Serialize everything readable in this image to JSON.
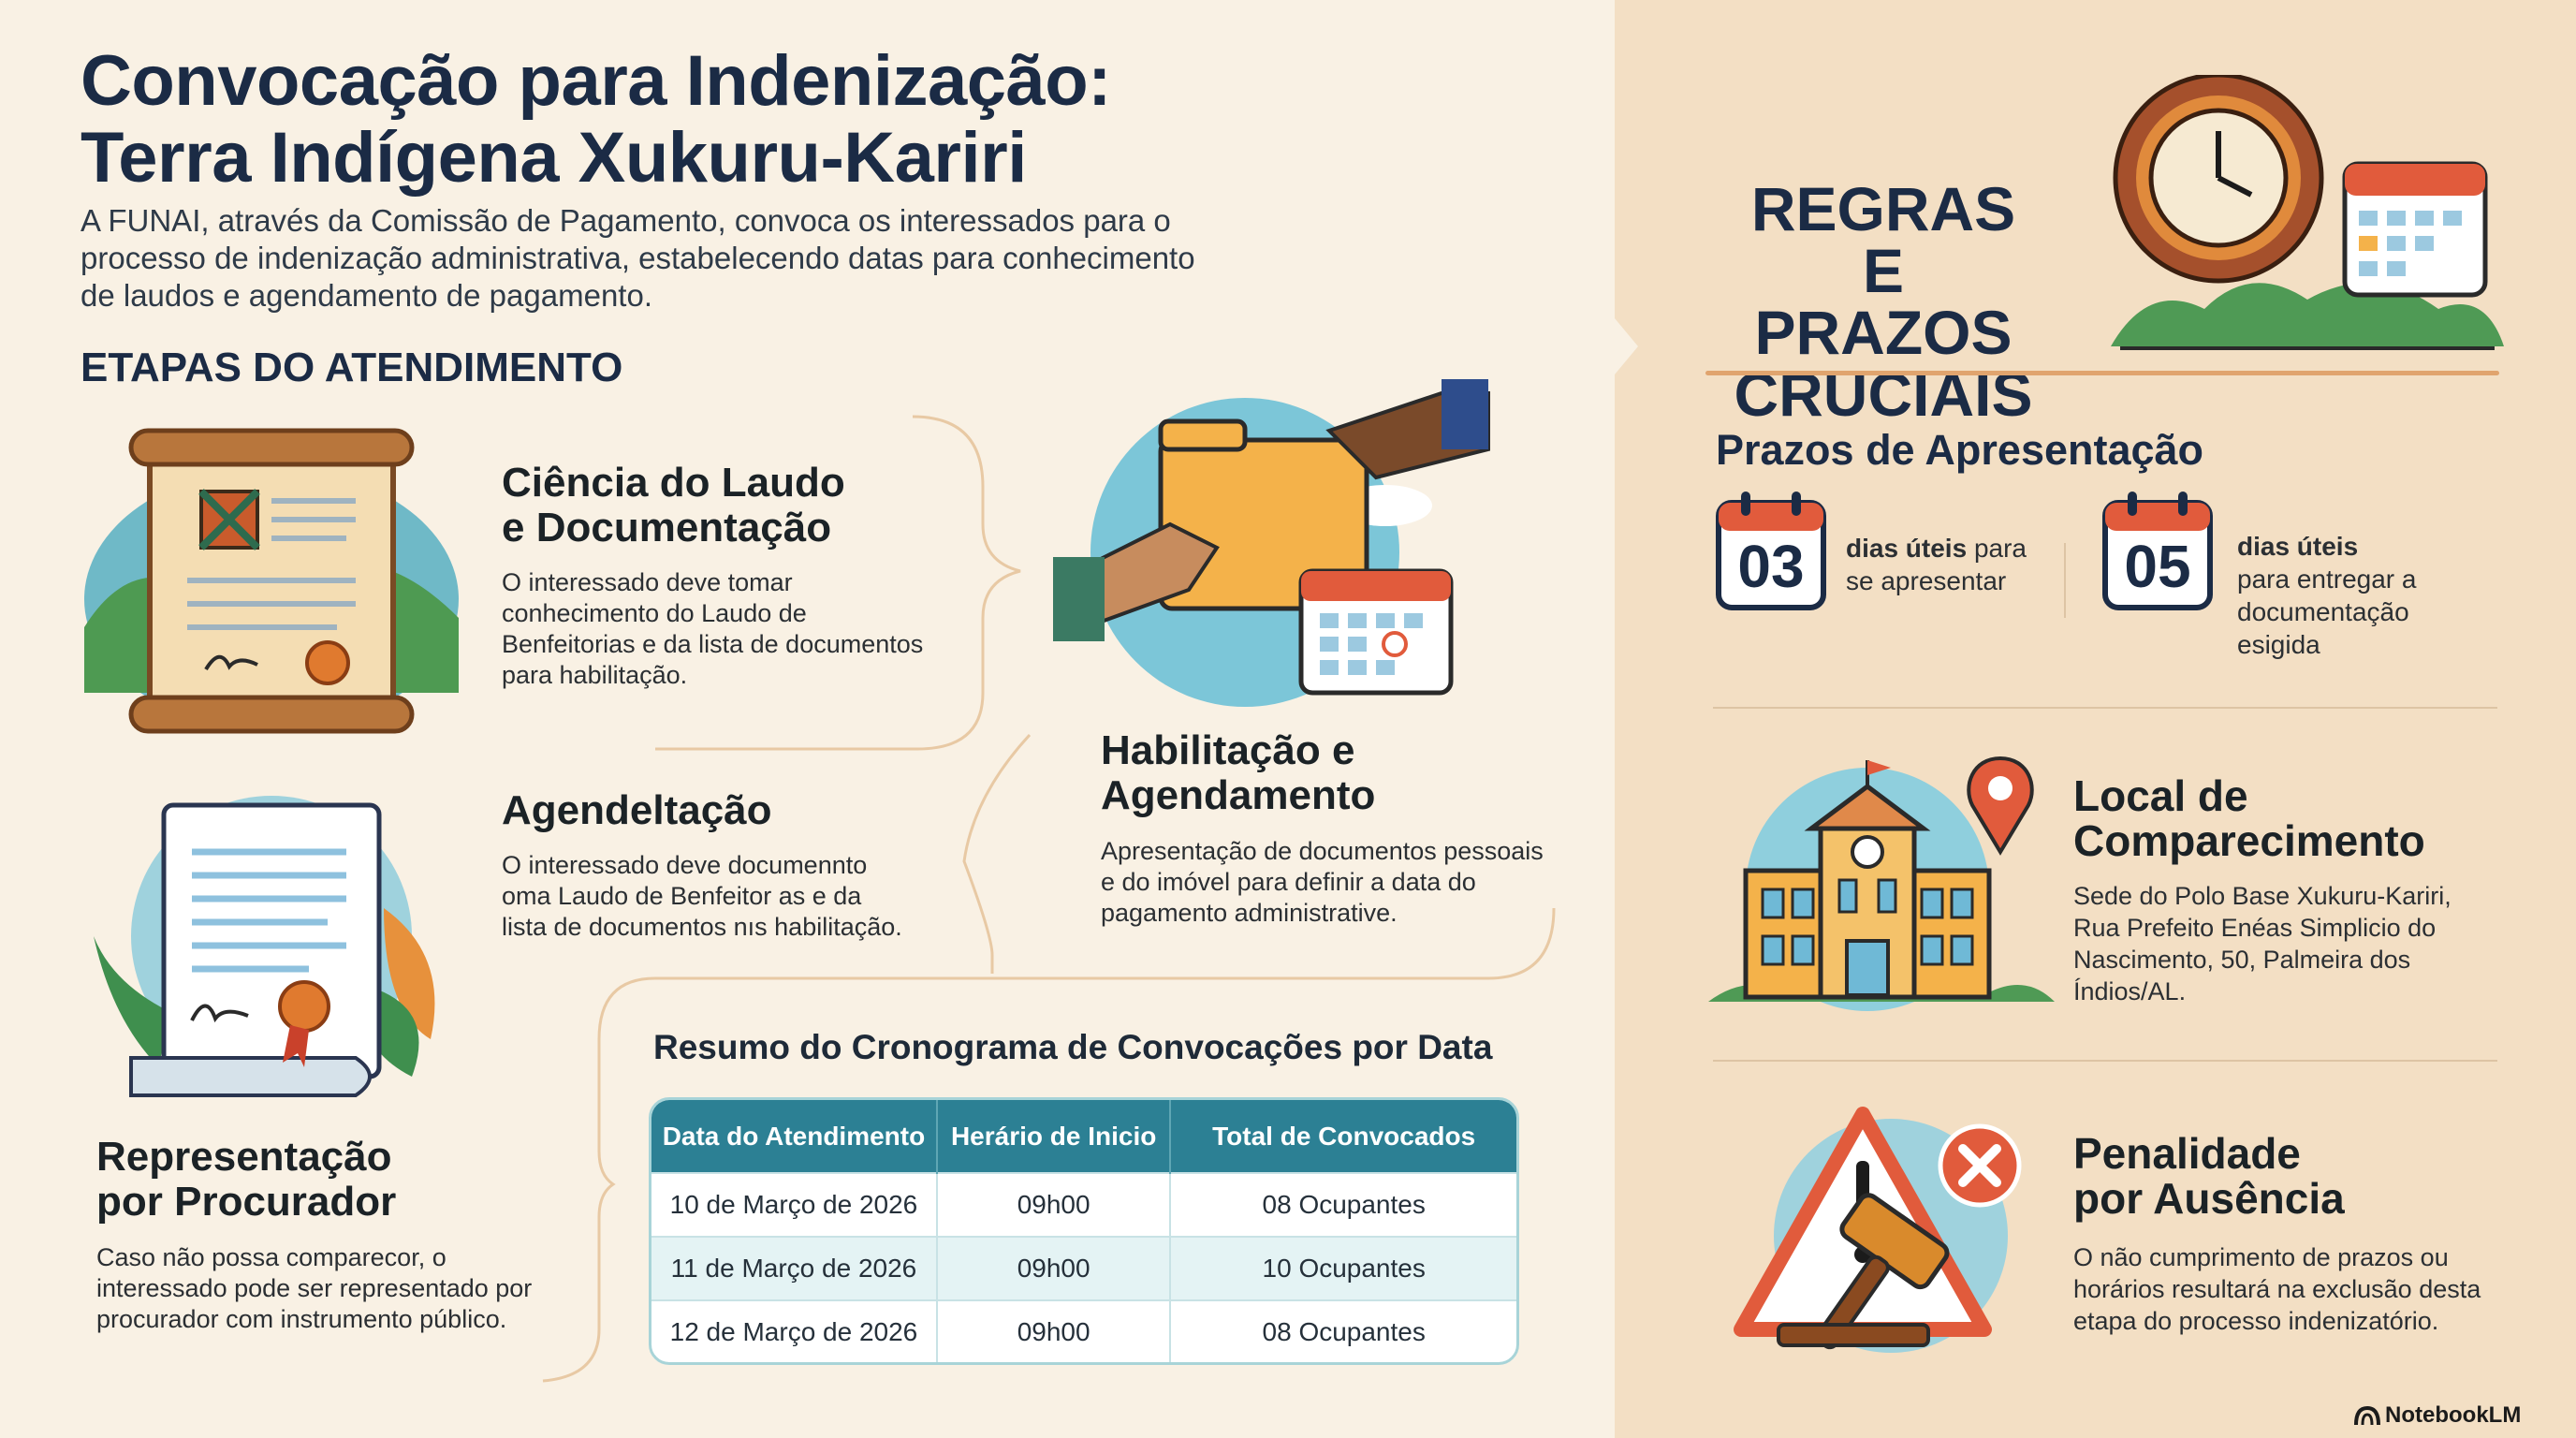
{
  "header": {
    "title_line1": "Convocação para Indenização:",
    "title_line2": "Terra Indígena Xukuru-Kariri",
    "intro_line1": "A FUNAI, através da Comissão de Pagamento, convoca os interessados para o",
    "intro_line2": "processo de indenização administrativa, estabelecendo datas para conhecimento",
    "intro_line3": "de laudos e agendamento de pagamento."
  },
  "steps_section": {
    "title": "ETAPAS DO ATENDIMENTO",
    "step1": {
      "title_line1": "Ciência do Laudo",
      "title_line2": "e Documentação",
      "desc_line1": "O interessado deve tomar",
      "desc_line2": "conhecimento do Laudo de",
      "desc_line3": "Benfeitorias e da lista de documentos",
      "desc_line4": "para habilitação."
    },
    "step2": {
      "title_line1": "Habilitação e",
      "title_line2": "Agendamento",
      "desc_line1": "Apresentação de documentos pessoais",
      "desc_line2": "e do imóvel para definir a data do",
      "desc_line3": "pagamento administrative."
    },
    "step3": {
      "title": "Agendeltação",
      "desc_line1": "O interessado deve documennto",
      "desc_line2": "oma Laudo de Benfeitor as e da",
      "desc_line3": "lista de documentos nıs habilitação."
    },
    "step4": {
      "title_line1": "Representação",
      "title_line2": "por Procurador",
      "desc_line1": "Caso não possa comparecor, o",
      "desc_line2": "interessado pode ser representado por",
      "desc_line3": "procurador com instrumento público."
    }
  },
  "schedule": {
    "title": "Resumo do Cronograma de Convocações por Data",
    "headers": [
      "Data do Atendimento",
      "Herário de Inicio",
      "Total de Convocados"
    ],
    "rows": [
      [
        "10 de Março de 2026",
        "09h00",
        "08 Ocupantes"
      ],
      [
        "11 de Março de 2026",
        "09h00",
        "10 Ocupantes"
      ],
      [
        "12 de Março de 2026",
        "09h00",
        "08 Ocupantes"
      ]
    ]
  },
  "rules": {
    "title_line1": "REGRAS E",
    "title_line2": "PRAZOS",
    "title_line3": "CRUCIAIS",
    "deadlines_title": "Prazos de Apresentação",
    "deadline1": {
      "number": "03",
      "bold": "dias úteis",
      "text1": " para",
      "text2": "se apresentar"
    },
    "deadline2": {
      "number": "05",
      "bold": "dias úteis",
      "text1": "para entregar a",
      "text2": "documentação",
      "text3": "esigida"
    },
    "location": {
      "title_line1": "Local de",
      "title_line2": "Comparecimento",
      "desc_line1": "Sede do Polo Base Xukuru-Kariri,",
      "desc_line2": "Rua Prefeito Enéas Simplicio do",
      "desc_line3": "Nascimento, 50, Palmeira dos",
      "desc_line4": "Índios/AL."
    },
    "penalty": {
      "title_line1": "Penalidade",
      "title_line2": "por Ausência",
      "desc_line1": "O não cumprimento de prazos ou",
      "desc_line2": "horários resultará na exclusão desta",
      "desc_line3": "etapa do processo indenizatório."
    }
  },
  "footer": {
    "brand": "NotebookLM"
  },
  "colors": {
    "navy": "#1b2b45",
    "teal": "#2c8094",
    "orange": "#e0a46e",
    "red": "#d9463a"
  }
}
